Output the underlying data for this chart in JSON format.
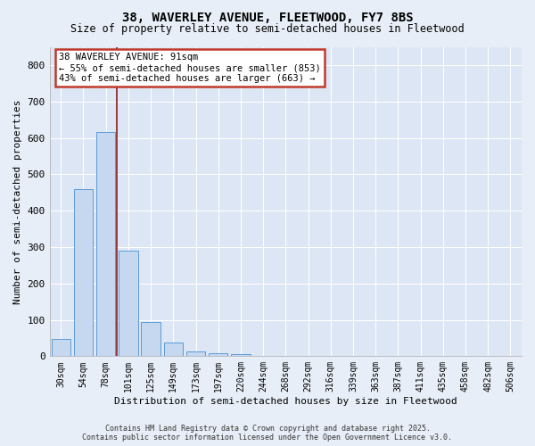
{
  "title_line1": "38, WAVERLEY AVENUE, FLEETWOOD, FY7 8BS",
  "title_line2": "Size of property relative to semi-detached houses in Fleetwood",
  "xlabel": "Distribution of semi-detached houses by size in Fleetwood",
  "ylabel": "Number of semi-detached properties",
  "categories": [
    "30sqm",
    "54sqm",
    "78sqm",
    "101sqm",
    "125sqm",
    "149sqm",
    "173sqm",
    "197sqm",
    "220sqm",
    "244sqm",
    "268sqm",
    "292sqm",
    "316sqm",
    "339sqm",
    "363sqm",
    "387sqm",
    "411sqm",
    "435sqm",
    "458sqm",
    "482sqm",
    "506sqm"
  ],
  "values": [
    48,
    458,
    615,
    290,
    93,
    38,
    12,
    8,
    5,
    0,
    0,
    0,
    0,
    0,
    0,
    0,
    0,
    0,
    0,
    0,
    0
  ],
  "highlight_index": 2,
  "bar_color_fill": "#c5d8f0",
  "bar_color_edge": "#5b9bd5",
  "vline_color": "#8b1a1a",
  "annotation_text": "38 WAVERLEY AVENUE: 91sqm\n← 55% of semi-detached houses are smaller (853)\n43% of semi-detached houses are larger (663) →",
  "annotation_box_facecolor": "#ffffff",
  "annotation_border_color": "#c0392b",
  "ylim": [
    0,
    850
  ],
  "yticks": [
    0,
    100,
    200,
    300,
    400,
    500,
    600,
    700,
    800
  ],
  "footer_line1": "Contains HM Land Registry data © Crown copyright and database right 2025.",
  "footer_line2": "Contains public sector information licensed under the Open Government Licence v3.0.",
  "background_color": "#e8eef7",
  "plot_background_color": "#dce6f4",
  "grid_color": "#ffffff",
  "title1_fontsize": 10,
  "title2_fontsize": 8.5,
  "tick_fontsize": 7,
  "label_fontsize": 8,
  "footer_fontsize": 6,
  "annot_fontsize": 7.5
}
